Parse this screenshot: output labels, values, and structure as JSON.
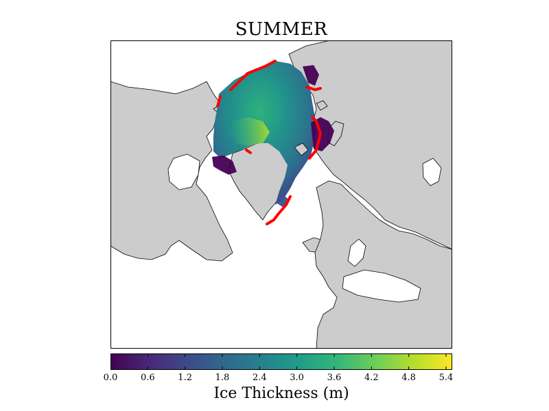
{
  "title": "SUMMER",
  "colorbar": {
    "label": "Ice Thickness (m)",
    "min": 0.0,
    "max": 5.5,
    "ticks": [
      "0.0",
      "0.6",
      "1.2",
      "1.8",
      "2.4",
      "3.0",
      "3.6",
      "4.2",
      "4.8",
      "5.4"
    ],
    "tick_values": [
      0.0,
      0.6,
      1.2,
      1.8,
      2.4,
      3.0,
      3.6,
      4.2,
      4.8,
      5.4
    ],
    "colormap": [
      "#440154",
      "#482878",
      "#3e4a89",
      "#31688e",
      "#26828e",
      "#1f9e89",
      "#35b779",
      "#6ece58",
      "#b5de2b",
      "#fde725"
    ]
  },
  "colors": {
    "land": "#cccccc",
    "ocean": "#ffffff",
    "coastline": "#000000",
    "ice_edge": "#ff0000"
  }
}
